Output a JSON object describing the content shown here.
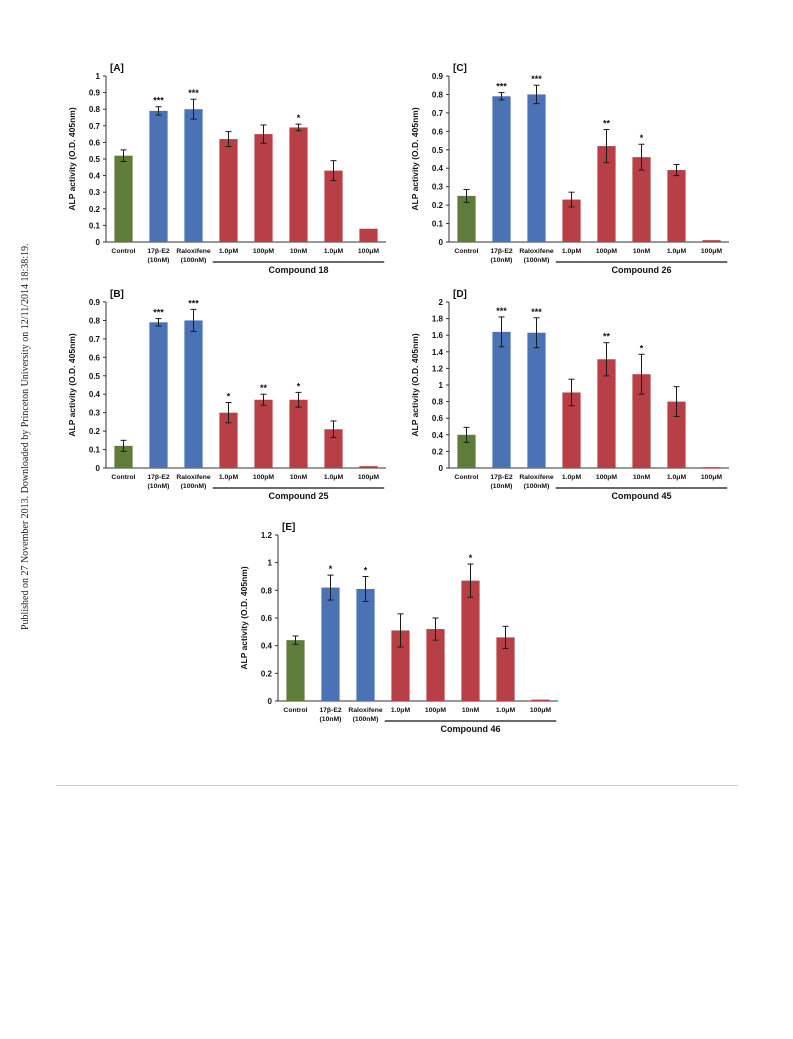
{
  "side_note": "Published on 27 November 2013. Downloaded by Princeton University on 12/11/2014 18:38:19.",
  "colors": {
    "control": "#5e7d3a",
    "reference": "#4a72b5",
    "compound": "#b83f46",
    "error_bar": "#1a1a1a"
  },
  "chart_data": [
    {
      "type": "bar",
      "panel_label": "[A]",
      "ylabel": "ALP activity (O.D. 405nm)",
      "ylim": [
        0,
        1
      ],
      "yticks": [
        "0",
        "0.1",
        "0.2",
        "0.3",
        "0.4",
        "0.5",
        "0.6",
        "0.7",
        "0.8",
        "0.9",
        "1"
      ],
      "categories": [
        "Control",
        "17β-E2\n(10nM)",
        "Raloxifene\n(100nM)",
        "1.0pM",
        "100pM",
        "10nM",
        "1.0μM",
        "100μM"
      ],
      "values": [
        0.52,
        0.79,
        0.8,
        0.62,
        0.65,
        0.69,
        0.43,
        0.08
      ],
      "errors": [
        0.035,
        0.025,
        0.06,
        0.045,
        0.055,
        0.02,
        0.06,
        0.005
      ],
      "significance": [
        "",
        "***",
        "***",
        "",
        "",
        "*",
        "",
        ""
      ],
      "group_label": "Compound 18"
    },
    {
      "type": "bar",
      "panel_label": "[C]",
      "ylabel": "ALP activity (O.D. 405nm)",
      "ylim": [
        0,
        0.9
      ],
      "yticks": [
        "0",
        "0.1",
        "0.2",
        "0.3",
        "0.4",
        "0.5",
        "0.6",
        "0.7",
        "0.8",
        "0.9"
      ],
      "categories": [
        "Control",
        "17β-E2\n(10nM)",
        "Raloxifene\n(100nM)",
        "1.0pM",
        "100pM",
        "10nM",
        "1.0μM",
        "100μM"
      ],
      "values": [
        0.25,
        0.79,
        0.8,
        0.23,
        0.52,
        0.46,
        0.39,
        0.01
      ],
      "errors": [
        0.035,
        0.02,
        0.05,
        0.04,
        0.09,
        0.07,
        0.03,
        0.005
      ],
      "significance": [
        "",
        "***",
        "***",
        "",
        "**",
        "*",
        "",
        ""
      ],
      "group_label": "Compound 26"
    },
    {
      "type": "bar",
      "panel_label": "[B]",
      "ylabel": "ALP activity (O.D. 405nm)",
      "ylim": [
        0,
        0.9
      ],
      "yticks": [
        "0",
        "0.1",
        "0.2",
        "0.3",
        "0.4",
        "0.5",
        "0.6",
        "0.7",
        "0.8",
        "0.9"
      ],
      "categories": [
        "Control",
        "17β-E2\n(10nM)",
        "Raloxifene\n(100nM)",
        "1.0pM",
        "100pM",
        "10nM",
        "1.0μM",
        "100μM"
      ],
      "values": [
        0.12,
        0.79,
        0.8,
        0.3,
        0.37,
        0.37,
        0.21,
        0.01
      ],
      "errors": [
        0.03,
        0.02,
        0.06,
        0.055,
        0.03,
        0.04,
        0.045,
        0.005
      ],
      "significance": [
        "",
        "***",
        "***",
        "*",
        "**",
        "*",
        "",
        ""
      ],
      "group_label": "Compound 25"
    },
    {
      "type": "bar",
      "panel_label": "[D]",
      "ylabel": "ALP activity (O.D. 405nm)",
      "ylim": [
        0,
        2
      ],
      "yticks": [
        "0",
        "0.2",
        "0.4",
        "0.6",
        "0.8",
        "1",
        "1.2",
        "1.4",
        "1.6",
        "1.8",
        "2"
      ],
      "categories": [
        "Control",
        "17β-E2\n(10nM)",
        "Raloxifene\n(100nM)",
        "1.0pM",
        "100pM",
        "10nM",
        "1.0μM",
        "100μM"
      ],
      "values": [
        0.4,
        1.64,
        1.63,
        0.91,
        1.31,
        1.13,
        0.8,
        0.01
      ],
      "errors": [
        0.09,
        0.18,
        0.18,
        0.16,
        0.2,
        0.24,
        0.18,
        0.005
      ],
      "significance": [
        "",
        "***",
        "***",
        "",
        "**",
        "*",
        "",
        ""
      ],
      "group_label": "Compound 45"
    },
    {
      "type": "bar",
      "panel_label": "[E]",
      "ylabel": "ALP activity (O.D. 405nm)",
      "ylim": [
        0,
        1.2
      ],
      "yticks": [
        "0",
        "0.2",
        "0.4",
        "0.6",
        "0.8",
        "1",
        "1.2"
      ],
      "categories": [
        "Control",
        "17β-E2\n(10nM)",
        "Raloxifene\n(100nM)",
        "1.0pM",
        "100pM",
        "10nM",
        "1.0μM",
        "100μM"
      ],
      "values": [
        0.44,
        0.82,
        0.81,
        0.51,
        0.52,
        0.87,
        0.46,
        0.01
      ],
      "errors": [
        0.03,
        0.09,
        0.09,
        0.12,
        0.08,
        0.12,
        0.08,
        0.005
      ],
      "significance": [
        "",
        "*",
        "*",
        "",
        "",
        "*",
        "",
        ""
      ],
      "group_label": "Compound 46"
    }
  ]
}
